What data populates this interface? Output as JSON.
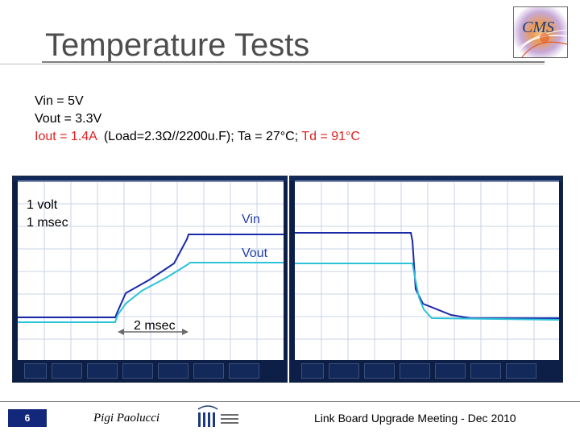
{
  "slide": {
    "title": "Temperature Tests",
    "logo_text": "CMS",
    "lines": {
      "vin": "Vin = 5V",
      "vout": "Vout = 3.3V",
      "iout_red": "Iout = 1.4A",
      "load": "  (Load=2.3Ω//2200u.F); Ta = 27°C; ",
      "td_red": "Td = 91°C"
    },
    "scope_labels": {
      "volt": "1 volt",
      "msec": "1 msec",
      "vin": "Vin",
      "vout": "Vout",
      "two_msec": "2 msec"
    },
    "footer": {
      "page_number": "6",
      "author": "Pigi Paolucci",
      "meeting": "Link Board Upgrade Meeting - Dec 2010"
    }
  },
  "colors": {
    "vin_trace": "#1b2aa8",
    "vout_trace": "#2bc3d8",
    "red_text": "#e02020",
    "scope_bg": "#0b1e47"
  }
}
